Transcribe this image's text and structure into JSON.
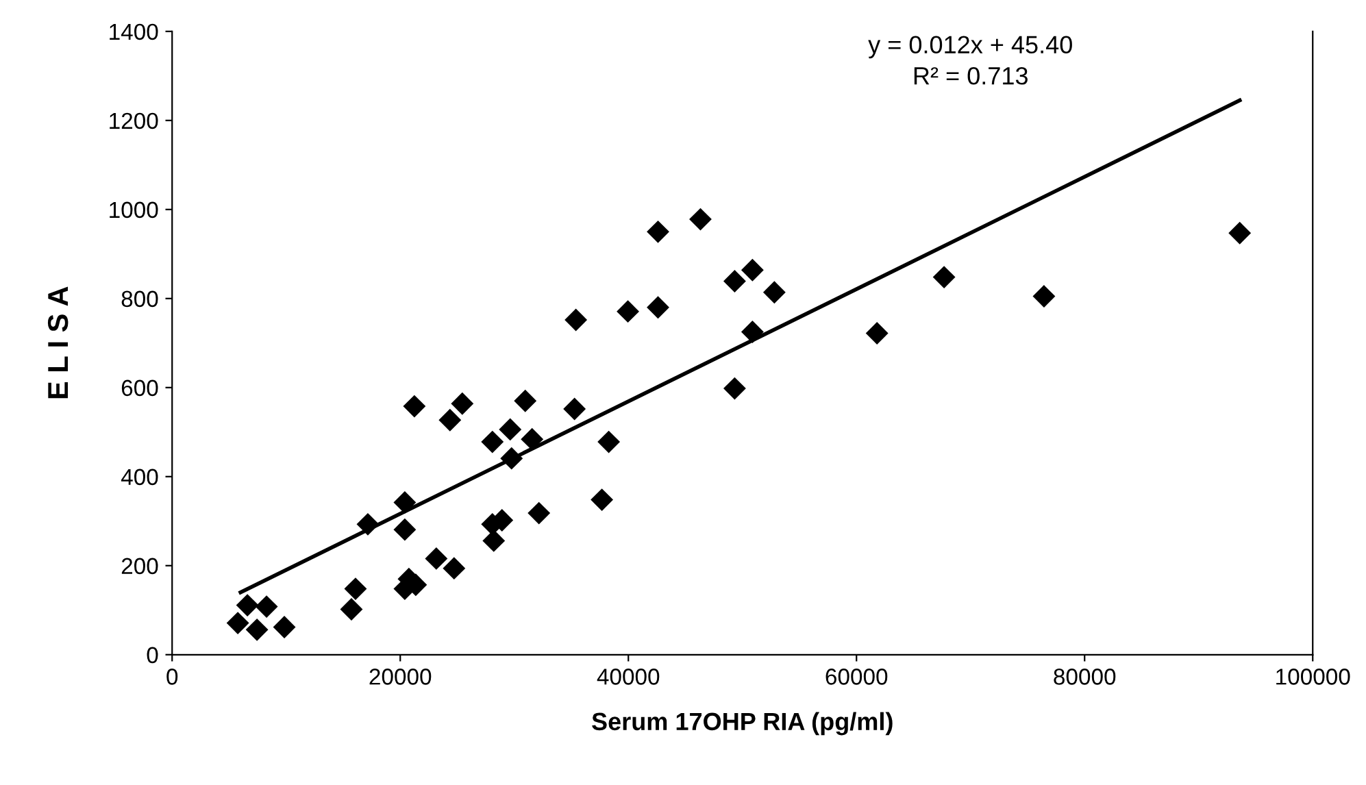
{
  "chart_data": {
    "type": "scatter",
    "xlabel": "Serum 17OHP RIA (pg/ml)",
    "ylabel": "E L I S A",
    "xlim": [
      0,
      100000
    ],
    "xticks": [
      0,
      20000,
      40000,
      60000,
      80000,
      100000
    ],
    "ylim": [
      0,
      1400
    ],
    "yticks": [
      0,
      200,
      400,
      600,
      800,
      1000,
      1200,
      1400
    ],
    "grid": false,
    "legend": false,
    "marker": "diamond",
    "annotations": [
      "y = 0.012x + 45.40",
      "R² = 0.713"
    ],
    "series": [
      {
        "color": "#000000",
        "x": [
          5760,
          6600,
          7440,
          8280,
          9840,
          15720,
          16080,
          20400,
          20400,
          17160,
          20400,
          21240,
          23160,
          24720,
          24360,
          25440,
          28080,
          28920,
          28200,
          28080,
          29640,
          29760,
          20760,
          21360,
          30960,
          31560,
          35400,
          35280,
          39960,
          42600,
          42600,
          46320,
          38280,
          37680,
          32160,
          49320,
          50880,
          52800,
          50880,
          49320,
          67680,
          61800,
          76440,
          93600
        ],
        "values": [
          71,
          111,
          56,
          108,
          62,
          102,
          148,
          148,
          342,
          293,
          281,
          558,
          216,
          194,
          527,
          564,
          293,
          302,
          256,
          478,
          506,
          441,
          170,
          157,
          570,
          484,
          752,
          552,
          771,
          950,
          780,
          978,
          478,
          348,
          318,
          839,
          864,
          814,
          725,
          598,
          848,
          722,
          805,
          947
        ]
      },
      {
        "type": "line",
        "color": "#000000",
        "marker": "none",
        "line_style": "solid",
        "x": [
          6000,
          93600
        ],
        "values": [
          140,
          1245
        ]
      }
    ]
  }
}
